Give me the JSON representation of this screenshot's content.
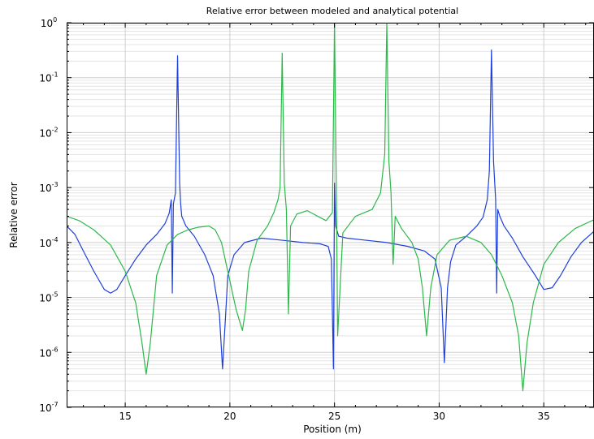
{
  "chart_data": {
    "type": "line",
    "title": "Relative error between modeled and analytical potential",
    "xlabel": "Position (m)",
    "ylabel": "Relative error",
    "xlim": [
      12.2,
      37.4
    ],
    "ylim": [
      1e-07,
      1
    ],
    "y_scale": "log",
    "x_ticks": [
      15,
      20,
      25,
      30,
      35
    ],
    "x_tick_labels": [
      "15",
      "20",
      "25",
      "30",
      "35"
    ],
    "y_ticks": [
      1e-07,
      1e-06,
      1e-05,
      0.0001,
      0.001,
      0.01,
      0.1,
      1
    ],
    "y_tick_labels": [
      {
        "base": "10",
        "exp": "-7"
      },
      {
        "base": "10",
        "exp": "-6"
      },
      {
        "base": "10",
        "exp": "-5"
      },
      {
        "base": "10",
        "exp": "-4"
      },
      {
        "base": "10",
        "exp": "-3"
      },
      {
        "base": "10",
        "exp": "-2"
      },
      {
        "base": "10",
        "exp": "-1"
      },
      {
        "base": "10",
        "exp": "0"
      }
    ],
    "grid": true,
    "legend": "none",
    "series": [
      {
        "color": "#1f3fd9",
        "x": [
          12.2,
          12.6,
          13.0,
          13.5,
          14.0,
          14.3,
          14.6,
          15.0,
          15.5,
          16.0,
          16.5,
          16.9,
          17.1,
          17.2,
          17.25,
          17.3,
          17.4,
          17.5,
          17.6,
          17.65,
          17.7,
          17.9,
          18.3,
          18.8,
          19.2,
          19.5,
          19.65,
          19.8,
          19.9,
          20.2,
          20.7,
          21.5,
          22.5,
          23.5,
          24.3,
          24.7,
          24.85,
          24.95,
          25.0,
          25.05,
          25.2,
          25.6,
          26.5,
          27.5,
          28.5,
          29.3,
          29.8,
          30.1,
          30.25,
          30.4,
          30.55,
          30.8,
          31.3,
          31.8,
          32.1,
          32.3,
          32.4,
          32.5,
          32.6,
          32.7,
          32.75,
          32.8,
          32.9,
          33.1,
          33.5,
          34.0,
          34.6,
          35.0,
          35.4,
          35.8,
          36.3,
          36.8,
          37.4
        ],
        "y": [
          0.0002,
          0.00014,
          7e-05,
          3e-05,
          1.4e-05,
          1.2e-05,
          1.4e-05,
          2.5e-05,
          5e-05,
          9e-05,
          0.00014,
          0.00022,
          0.00034,
          0.0006,
          1.2e-05,
          0.0005,
          0.0008,
          0.25,
          0.0012,
          0.0005,
          0.0003,
          0.0002,
          0.00013,
          6e-05,
          2.5e-05,
          5e-06,
          5e-07,
          5e-06,
          2.5e-05,
          6e-05,
          0.0001,
          0.00012,
          0.00011,
          0.0001,
          9.5e-05,
          8.5e-05,
          5e-05,
          5e-07,
          0.0012,
          0.0002,
          0.00013,
          0.00012,
          0.00011,
          0.0001,
          8.5e-05,
          7e-05,
          5e-05,
          1.5e-05,
          6.5e-07,
          1.5e-05,
          4.5e-05,
          9e-05,
          0.00013,
          0.0002,
          0.00029,
          0.0006,
          0.002,
          0.32,
          0.003,
          0.0006,
          1.2e-05,
          0.0004,
          0.0003,
          0.0002,
          0.00012,
          5.5e-05,
          2.5e-05,
          1.4e-05,
          1.5e-05,
          2.5e-05,
          5.5e-05,
          0.0001,
          0.00016
        ]
      },
      {
        "color": "#2db84a",
        "x": [
          12.2,
          12.8,
          13.5,
          14.3,
          15.0,
          15.5,
          15.8,
          16.0,
          16.2,
          16.5,
          17.0,
          17.5,
          18.0,
          18.5,
          19.0,
          19.3,
          19.6,
          19.9,
          20.3,
          20.6,
          20.75,
          20.9,
          21.3,
          21.8,
          22.1,
          22.3,
          22.4,
          22.5,
          22.6,
          22.7,
          22.8,
          22.9,
          23.2,
          23.7,
          24.2,
          24.6,
          24.9,
          25.0,
          25.1,
          25.15,
          25.4,
          26.0,
          26.8,
          27.2,
          27.4,
          27.5,
          27.6,
          27.7,
          27.8,
          27.9,
          28.2,
          28.7,
          29.0,
          29.2,
          29.4,
          29.6,
          29.9,
          30.5,
          31.3,
          32.0,
          32.5,
          33.0,
          33.5,
          33.8,
          34.0,
          34.2,
          34.5,
          35.0,
          35.7,
          36.5,
          37.4
        ],
        "y": [
          0.0003,
          0.00025,
          0.00017,
          9e-05,
          3e-05,
          8e-06,
          1.5e-06,
          4e-07,
          1.5e-06,
          2.5e-05,
          9e-05,
          0.00014,
          0.00017,
          0.00019,
          0.0002,
          0.00017,
          0.0001,
          3e-05,
          6e-06,
          2.5e-06,
          6e-06,
          3e-05,
          0.00011,
          0.0002,
          0.00035,
          0.0006,
          0.001,
          0.28,
          0.0012,
          0.0004,
          5e-06,
          0.0002,
          0.00033,
          0.00038,
          0.0003,
          0.00025,
          0.00035,
          1.0,
          0.0003,
          2e-06,
          0.00015,
          0.0003,
          0.0004,
          0.0008,
          0.004,
          1.0,
          0.003,
          0.0008,
          4e-05,
          0.0003,
          0.00018,
          0.0001,
          5e-05,
          1.5e-05,
          2e-06,
          1.5e-05,
          6e-05,
          0.00011,
          0.00013,
          0.0001,
          6e-05,
          2.5e-05,
          8e-06,
          2e-06,
          2e-07,
          1.5e-06,
          8e-06,
          4e-05,
          0.0001,
          0.00018,
          0.00026
        ]
      }
    ]
  }
}
